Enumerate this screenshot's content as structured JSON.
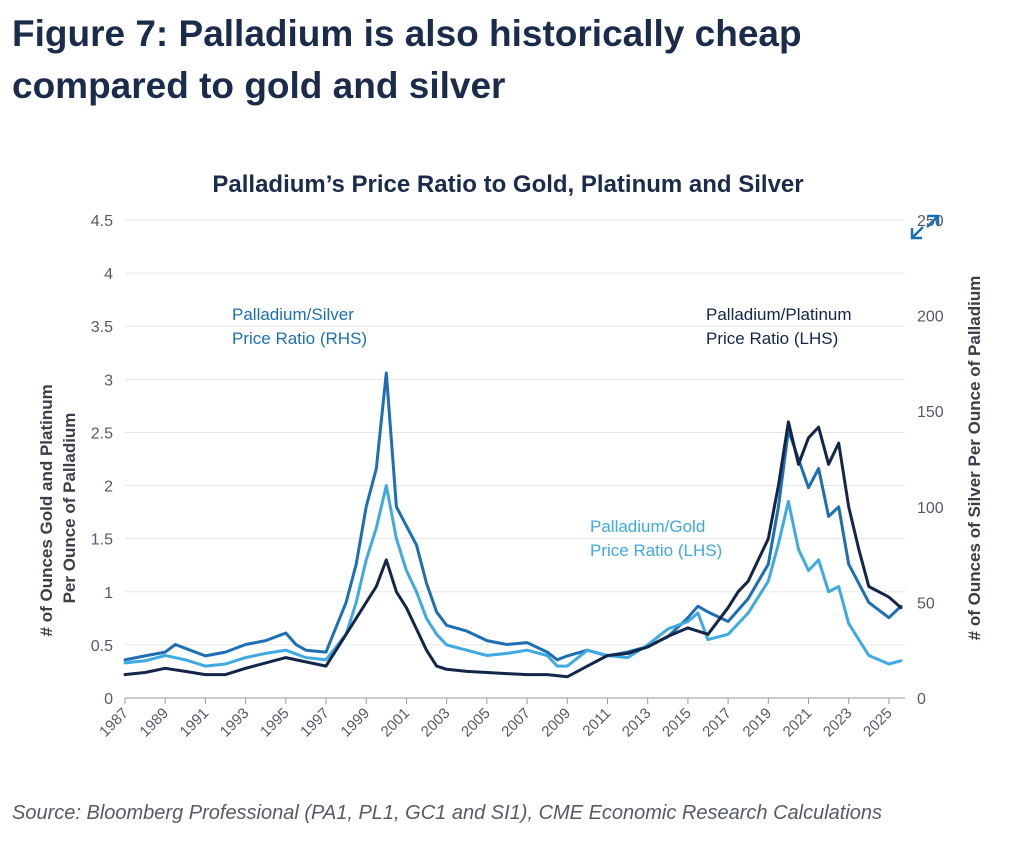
{
  "figure": {
    "title_line1": "Figure 7: Palladium is also historically cheap",
    "title_line2": "compared to gold and silver"
  },
  "source": "Source: Bloomberg Professional (PA1, PL1, GC1 and SI1), CME Economic Research Calculations",
  "colors": {
    "platinum": "#13264a",
    "silver": "#1c6fb4",
    "gold": "#3ea9e2",
    "axis_text": "#555a66",
    "grid": "#e6e6e6"
  },
  "chart_data": {
    "type": "line",
    "title": "Palladium’s Price Ratio to Gold, Platinum and Silver",
    "ylabel_left_line1": "# of Ounces Gold and Platinum",
    "ylabel_left_line2": "Per Ounce of Palladium",
    "ylabel_right": "# of Ounces of Silver Per Ounce of Palladium",
    "xlim": [
      1987,
      2025.8
    ],
    "ylim_left": [
      0,
      4.5
    ],
    "ylim_right": [
      0,
      250
    ],
    "x_ticks": [
      "1987",
      "1989",
      "1991",
      "1993",
      "1995",
      "1997",
      "1999",
      "2001",
      "2003",
      "2005",
      "2007",
      "2009",
      "2011",
      "2013",
      "2015",
      "2017",
      "2019",
      "2021",
      "2023",
      "2025"
    ],
    "y_ticks_left": [
      "0",
      "0.5",
      "1",
      "1.5",
      "2",
      "2.5",
      "3",
      "3.5",
      "4",
      "4.5"
    ],
    "y_ticks_right": [
      "0",
      "50",
      "100",
      "150",
      "200",
      "250"
    ],
    "grid": "horizontal",
    "annotations": [
      {
        "series": "silver",
        "line1": "Palladium/Silver",
        "line2": "Price Ratio (RHS)"
      },
      {
        "series": "platinum",
        "line1": "Palladium/Platinum",
        "line2": "Price Ratio (LHS)"
      },
      {
        "series": "gold",
        "line1": "Palladium/Gold",
        "line2": "Price Ratio (LHS)"
      }
    ],
    "series": [
      {
        "key": "silver",
        "axis": "right",
        "x": [
          1987,
          1988,
          1989,
          1989.5,
          1990,
          1991,
          1992,
          1993,
          1994,
          1995,
          1995.5,
          1996,
          1997,
          1998,
          1998.5,
          1999,
          1999.5,
          2000,
          2000.5,
          2001,
          2001.5,
          2002,
          2002.5,
          2003,
          2004,
          2005,
          2006,
          2007,
          2008,
          2008.5,
          2009,
          2010,
          2011,
          2012,
          2013,
          2014,
          2015,
          2015.5,
          2016,
          2017,
          2018,
          2019,
          2019.5,
          2020,
          2020.5,
          2021,
          2021.5,
          2022,
          2022.5,
          2023,
          2024,
          2025,
          2025.6
        ],
        "y": [
          20,
          22,
          24,
          28,
          26,
          22,
          24,
          28,
          30,
          34,
          28,
          25,
          24,
          50,
          70,
          100,
          120,
          170,
          100,
          90,
          80,
          60,
          45,
          38,
          35,
          30,
          28,
          29,
          24,
          20,
          22,
          25,
          22,
          24,
          27,
          32,
          42,
          48,
          45,
          40,
          52,
          70,
          100,
          140,
          125,
          110,
          120,
          95,
          100,
          70,
          50,
          42,
          48
        ]
      },
      {
        "key": "gold",
        "axis": "left",
        "x": [
          1987,
          1988,
          1989,
          1990,
          1991,
          1992,
          1993,
          1994,
          1995,
          1996,
          1997,
          1998,
          1998.5,
          1999,
          1999.5,
          2000,
          2000.5,
          2001,
          2001.5,
          2002,
          2002.5,
          2003,
          2004,
          2005,
          2006,
          2007,
          2008,
          2008.5,
          2009,
          2010,
          2011,
          2012,
          2013,
          2014,
          2015,
          2015.5,
          2016,
          2017,
          2018,
          2019,
          2019.5,
          2020,
          2020.5,
          2021,
          2021.5,
          2022,
          2022.5,
          2023,
          2023.5,
          2024,
          2025,
          2025.6
        ],
        "y": [
          0.33,
          0.35,
          0.4,
          0.36,
          0.3,
          0.32,
          0.38,
          0.42,
          0.45,
          0.38,
          0.36,
          0.6,
          0.9,
          1.3,
          1.6,
          2.0,
          1.5,
          1.2,
          1.0,
          0.75,
          0.6,
          0.5,
          0.45,
          0.4,
          0.42,
          0.45,
          0.4,
          0.3,
          0.3,
          0.45,
          0.4,
          0.38,
          0.5,
          0.65,
          0.72,
          0.8,
          0.55,
          0.6,
          0.8,
          1.1,
          1.45,
          1.85,
          1.4,
          1.2,
          1.3,
          1.0,
          1.05,
          0.7,
          0.55,
          0.4,
          0.32,
          0.35
        ]
      },
      {
        "key": "platinum",
        "axis": "left",
        "x": [
          1987,
          1988,
          1989,
          1990,
          1991,
          1992,
          1993,
          1994,
          1995,
          1996,
          1997,
          1998,
          1999,
          1999.5,
          2000,
          2000.5,
          2001,
          2001.5,
          2002,
          2002.5,
          2003,
          2004,
          2005,
          2006,
          2007,
          2008,
          2009,
          2010,
          2011,
          2012,
          2013,
          2014,
          2015,
          2016,
          2017,
          2017.5,
          2018,
          2019,
          2019.5,
          2020,
          2020.5,
          2021,
          2021.5,
          2022,
          2022.5,
          2023,
          2023.5,
          2024,
          2025,
          2025.6
        ],
        "y": [
          0.22,
          0.24,
          0.28,
          0.25,
          0.22,
          0.22,
          0.28,
          0.33,
          0.38,
          0.34,
          0.3,
          0.6,
          0.9,
          1.05,
          1.3,
          1.0,
          0.85,
          0.65,
          0.45,
          0.3,
          0.27,
          0.25,
          0.24,
          0.23,
          0.22,
          0.22,
          0.2,
          0.3,
          0.4,
          0.42,
          0.48,
          0.58,
          0.66,
          0.6,
          0.85,
          1.0,
          1.1,
          1.5,
          2.0,
          2.6,
          2.2,
          2.45,
          2.55,
          2.2,
          2.4,
          1.8,
          1.4,
          1.05,
          0.95,
          0.85
        ]
      }
    ]
  }
}
